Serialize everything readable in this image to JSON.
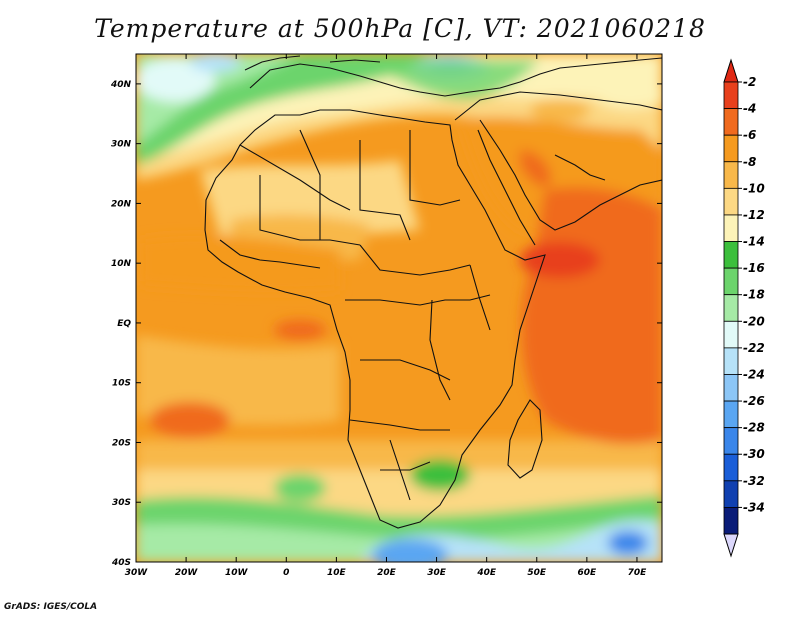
{
  "title": "Temperature at 500hPa [C], VT: 2021060218",
  "footer": "GrADS: IGES/COLA",
  "map": {
    "lon_range": [
      -30,
      75
    ],
    "lat_range": [
      -40,
      45
    ],
    "lat_ticks": [
      {
        "value": 40,
        "label": "40N"
      },
      {
        "value": 30,
        "label": "30N"
      },
      {
        "value": 20,
        "label": "20N"
      },
      {
        "value": 10,
        "label": "10N"
      },
      {
        "value": 0,
        "label": "EQ"
      },
      {
        "value": -10,
        "label": "10S"
      },
      {
        "value": -20,
        "label": "20S"
      },
      {
        "value": -30,
        "label": "30S"
      },
      {
        "value": -40,
        "label": "40S"
      }
    ],
    "lon_ticks": [
      {
        "value": -30,
        "label": "30W"
      },
      {
        "value": -20,
        "label": "20W"
      },
      {
        "value": -10,
        "label": "10W"
      },
      {
        "value": 0,
        "label": "0"
      },
      {
        "value": 10,
        "label": "10E"
      },
      {
        "value": 20,
        "label": "20E"
      },
      {
        "value": 30,
        "label": "30E"
      },
      {
        "value": 40,
        "label": "40E"
      },
      {
        "value": 50,
        "label": "50E"
      },
      {
        "value": 60,
        "label": "60E"
      },
      {
        "value": 70,
        "label": "70E"
      }
    ]
  },
  "colorbar": {
    "labels": [
      "-2",
      "-4",
      "-6",
      "-8",
      "-10",
      "-12",
      "-14",
      "-16",
      "-18",
      "-20",
      "-22",
      "-24",
      "-26",
      "-28",
      "-30",
      "-32",
      "-34"
    ],
    "colors": [
      "#e8401c",
      "#f06a1e",
      "#f59a1f",
      "#f8b84a",
      "#fcd884",
      "#fdf3b8",
      "#3cbf3c",
      "#6cd46c",
      "#a6eaa6",
      "#e2faf8",
      "#b6e2f8",
      "#8cc6f6",
      "#5aa6f2",
      "#3a86ea",
      "#1a5ed8",
      "#1040b0",
      "#0a1c78"
    ],
    "top_arrow_color": "#e02814",
    "bottom_arrow_color": "#dcd8fc"
  }
}
